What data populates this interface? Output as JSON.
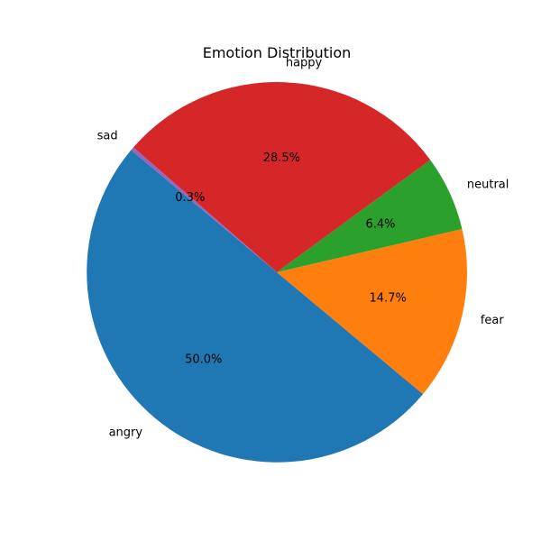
{
  "chart_data": {
    "type": "pie",
    "title": "Emotion Distribution",
    "start_angle_deg": 140,
    "direction": "counterclockwise",
    "legend": "none",
    "slices": [
      {
        "label": "angry",
        "value": 50.0,
        "pct_label": "50.0%",
        "color": "#1f77b4"
      },
      {
        "label": "fear",
        "value": 14.7,
        "pct_label": "14.7%",
        "color": "#ff7f0e"
      },
      {
        "label": "neutral",
        "value": 6.4,
        "pct_label": "6.4%",
        "color": "#2ca02c"
      },
      {
        "label": "happy",
        "value": 28.5,
        "pct_label": "28.5%",
        "color": "#d62728"
      },
      {
        "label": "sad",
        "value": 0.3,
        "pct_label": "0.3%",
        "color": "#9467bd"
      }
    ]
  }
}
